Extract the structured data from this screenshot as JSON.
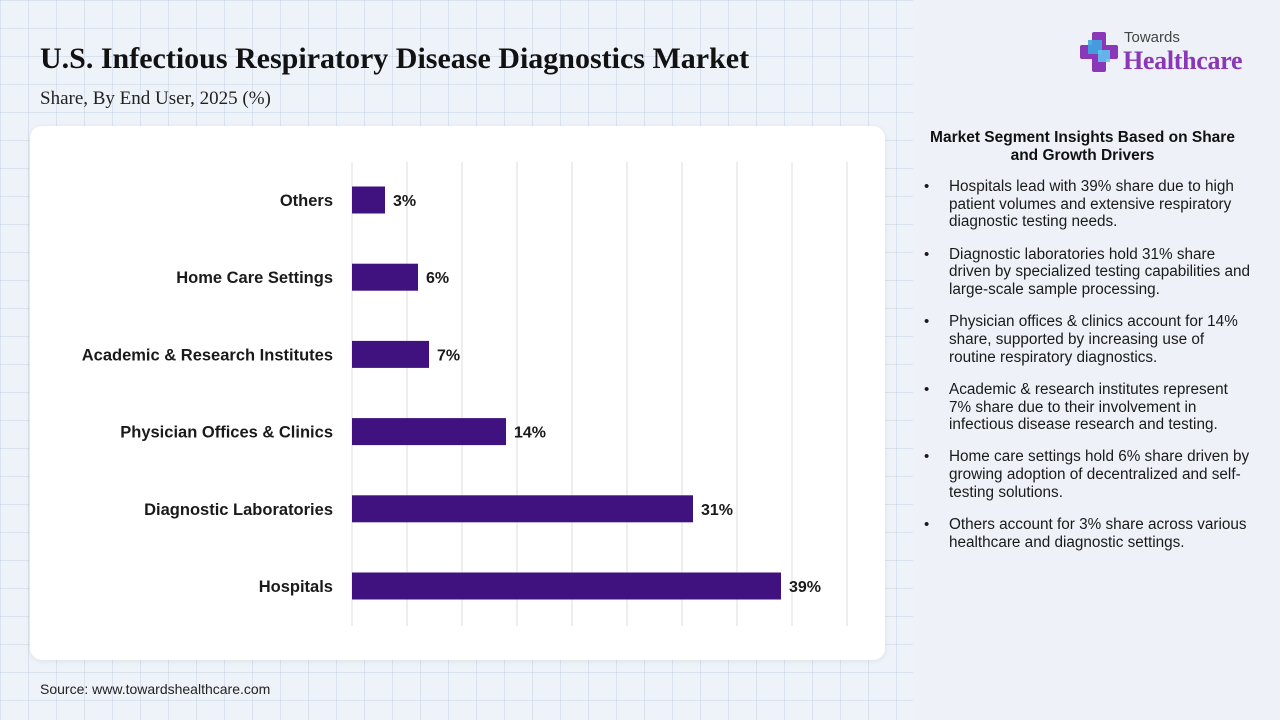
{
  "header": {
    "title": "U.S. Infectious Respiratory Disease Diagnostics Market",
    "subtitle": "Share, By End User, 2025 (%)"
  },
  "logo": {
    "top_text": "Towards",
    "main_text": "Healthcare",
    "icon": "medical-cross-icon"
  },
  "colors": {
    "bar": "#3f1280",
    "brand": "#8a37b8",
    "gridline": "#dcdcdc"
  },
  "chart_data": {
    "type": "bar",
    "orientation": "horizontal",
    "categories": [
      "Others",
      "Home Care Settings",
      "Academic & Research Institutes",
      "Physician Offices & Clinics",
      "Diagnostic Laboratories",
      "Hospitals"
    ],
    "values": [
      3,
      6,
      7,
      14,
      31,
      39
    ],
    "value_labels": [
      "3%",
      "6%",
      "7%",
      "14%",
      "31%",
      "39%"
    ],
    "xlim": [
      0,
      45
    ],
    "grid": true,
    "legend": "none"
  },
  "insights": {
    "title": "Market Segment Insights Based on Share and Growth Drivers",
    "items": [
      "Hospitals lead with 39% share due to high patient volumes and extensive respiratory diagnostic testing needs.",
      "Diagnostic laboratories hold 31% share driven by specialized testing capabilities and large-scale sample processing.",
      "Physician offices & clinics account for 14% share, supported by increasing use of routine respiratory diagnostics.",
      "Academic & research institutes represent 7% share due to their involvement in infectious disease research and testing.",
      "Home care settings hold 6% share driven by growing adoption of decentralized and self-testing solutions.",
      "Others account for 3% share across various healthcare and diagnostic settings."
    ]
  },
  "source": "Source: www.towardshealthcare.com"
}
